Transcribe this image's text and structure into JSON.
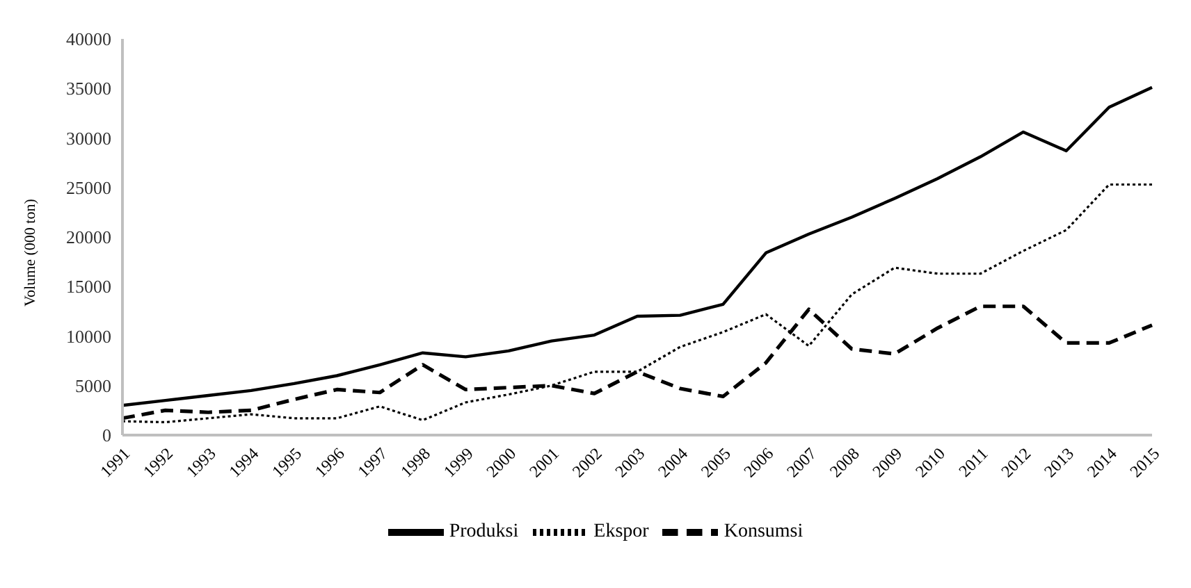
{
  "chart_data": {
    "type": "line",
    "ylabel": "Volume (000 ton)",
    "categories": [
      "1991",
      "1992",
      "1993",
      "1994",
      "1995",
      "1996",
      "1997",
      "1998",
      "1999",
      "2000",
      "2001",
      "2002",
      "2003",
      "2004",
      "2005",
      "2006",
      "2007",
      "2008",
      "2009",
      "2010",
      "2011",
      "2012",
      "2013",
      "2014",
      "2015"
    ],
    "series": [
      {
        "name": "Produksi",
        "color": "#000000",
        "line_style": "solid",
        "values": [
          3000,
          3500,
          4000,
          4500,
          5200,
          6000,
          7100,
          8300,
          7900,
          8500,
          9500,
          10100,
          12000,
          12100,
          13200,
          18400,
          20300,
          22000,
          23900,
          25900,
          28100,
          30600,
          28700,
          33100,
          35100
        ]
      },
      {
        "name": "Ekspor",
        "color": "#000000",
        "line_style": "dotted",
        "values": [
          1400,
          1300,
          1700,
          2100,
          1700,
          1700,
          2900,
          1500,
          3300,
          4100,
          5000,
          6400,
          6400,
          8900,
          10400,
          12200,
          9000,
          14200,
          16900,
          16300,
          16300,
          18600,
          20700,
          25300,
          25300
        ]
      },
      {
        "name": "Konsumsi",
        "color": "#000000",
        "line_style": "dashed",
        "values": [
          1700,
          2500,
          2300,
          2500,
          3600,
          4600,
          4300,
          7100,
          4600,
          4800,
          5000,
          4200,
          6400,
          4700,
          3900,
          7300,
          12700,
          8700,
          8200,
          10800,
          13000,
          13000,
          9300,
          9300,
          11100
        ]
      }
    ],
    "ylim": [
      0,
      40000
    ],
    "yticks": [
      0,
      5000,
      10000,
      15000,
      20000,
      25000,
      30000,
      35000,
      40000
    ],
    "grid": false,
    "legend": "bottom",
    "marker": "none"
  }
}
